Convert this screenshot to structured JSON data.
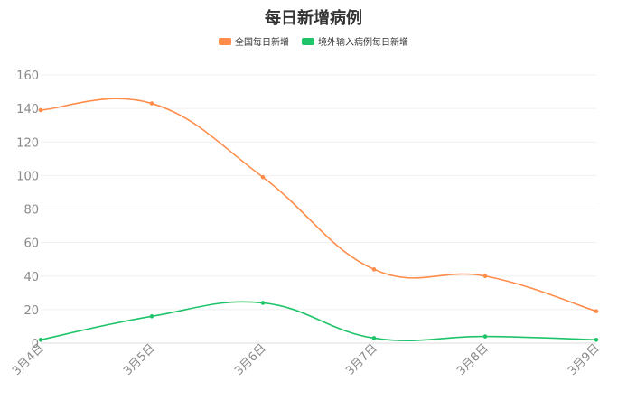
{
  "chart_data": {
    "type": "line",
    "title": "每日新增病例",
    "categories": [
      "3月4日",
      "3月5日",
      "3月6日",
      "3月7日",
      "3月8日",
      "3月9日"
    ],
    "series": [
      {
        "name": "全国每日新增",
        "values": [
          139,
          143,
          99,
          44,
          40,
          19
        ],
        "color": "#ff8c4a"
      },
      {
        "name": "境外输入病例每日新增",
        "values": [
          2,
          16,
          24,
          3,
          4,
          2
        ],
        "color": "#1fc46a"
      }
    ],
    "ylim": [
      0,
      160
    ],
    "yticks": [
      0,
      20,
      40,
      60,
      80,
      100,
      120,
      140,
      160
    ],
    "smooth": true,
    "grid": "horizontal",
    "legend": "top-center"
  }
}
